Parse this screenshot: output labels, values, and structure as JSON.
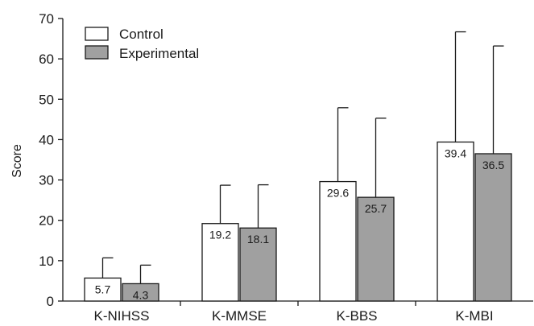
{
  "chart_data": {
    "type": "bar",
    "categories": [
      "K-NIHSS",
      "K-MMSE",
      "K-BBS",
      "K-MBI"
    ],
    "series": [
      {
        "name": "Control",
        "values": [
          5.7,
          19.2,
          29.6,
          39.4
        ],
        "error_upper": [
          10.7,
          28.7,
          47.9,
          66.7
        ],
        "color": "#ffffff"
      },
      {
        "name": "Experimental",
        "values": [
          4.3,
          18.1,
          25.7,
          36.5
        ],
        "error_upper": [
          8.9,
          28.8,
          45.3,
          63.2
        ],
        "color": "#a0a0a0"
      }
    ],
    "data_labels": [
      [
        "5.7",
        "19.2",
        "29.6",
        "39.4"
      ],
      [
        "4.3",
        "18.1",
        "25.7",
        "36.5"
      ]
    ],
    "ylabel": "Score",
    "ylim": [
      0,
      70
    ],
    "yticks": [
      "0",
      "10",
      "20",
      "30",
      "40",
      "50",
      "60",
      "70"
    ],
    "legend_position": "top-left",
    "grid": false
  }
}
